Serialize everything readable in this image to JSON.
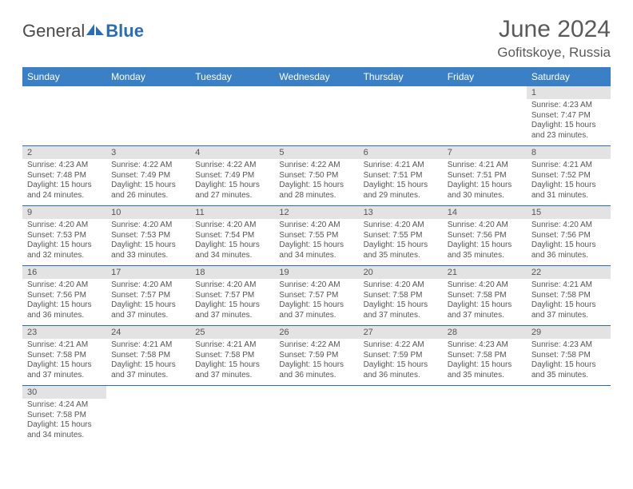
{
  "brand": {
    "part1": "General",
    "part2": "Blue"
  },
  "title": "June 2024",
  "location": "Gofitskoye, Russia",
  "colors": {
    "header_bg": "#3b7fc4",
    "header_text": "#ffffff",
    "daynum_bg": "#e3e3e3",
    "border": "#2a6db0",
    "text": "#555555"
  },
  "dayNames": [
    "Sunday",
    "Monday",
    "Tuesday",
    "Wednesday",
    "Thursday",
    "Friday",
    "Saturday"
  ],
  "weeks": [
    [
      null,
      null,
      null,
      null,
      null,
      null,
      {
        "n": "1",
        "sunrise": "Sunrise: 4:23 AM",
        "sunset": "Sunset: 7:47 PM",
        "daylight": "Daylight: 15 hours and 23 minutes."
      }
    ],
    [
      {
        "n": "2",
        "sunrise": "Sunrise: 4:23 AM",
        "sunset": "Sunset: 7:48 PM",
        "daylight": "Daylight: 15 hours and 24 minutes."
      },
      {
        "n": "3",
        "sunrise": "Sunrise: 4:22 AM",
        "sunset": "Sunset: 7:49 PM",
        "daylight": "Daylight: 15 hours and 26 minutes."
      },
      {
        "n": "4",
        "sunrise": "Sunrise: 4:22 AM",
        "sunset": "Sunset: 7:49 PM",
        "daylight": "Daylight: 15 hours and 27 minutes."
      },
      {
        "n": "5",
        "sunrise": "Sunrise: 4:22 AM",
        "sunset": "Sunset: 7:50 PM",
        "daylight": "Daylight: 15 hours and 28 minutes."
      },
      {
        "n": "6",
        "sunrise": "Sunrise: 4:21 AM",
        "sunset": "Sunset: 7:51 PM",
        "daylight": "Daylight: 15 hours and 29 minutes."
      },
      {
        "n": "7",
        "sunrise": "Sunrise: 4:21 AM",
        "sunset": "Sunset: 7:51 PM",
        "daylight": "Daylight: 15 hours and 30 minutes."
      },
      {
        "n": "8",
        "sunrise": "Sunrise: 4:21 AM",
        "sunset": "Sunset: 7:52 PM",
        "daylight": "Daylight: 15 hours and 31 minutes."
      }
    ],
    [
      {
        "n": "9",
        "sunrise": "Sunrise: 4:20 AM",
        "sunset": "Sunset: 7:53 PM",
        "daylight": "Daylight: 15 hours and 32 minutes."
      },
      {
        "n": "10",
        "sunrise": "Sunrise: 4:20 AM",
        "sunset": "Sunset: 7:53 PM",
        "daylight": "Daylight: 15 hours and 33 minutes."
      },
      {
        "n": "11",
        "sunrise": "Sunrise: 4:20 AM",
        "sunset": "Sunset: 7:54 PM",
        "daylight": "Daylight: 15 hours and 34 minutes."
      },
      {
        "n": "12",
        "sunrise": "Sunrise: 4:20 AM",
        "sunset": "Sunset: 7:55 PM",
        "daylight": "Daylight: 15 hours and 34 minutes."
      },
      {
        "n": "13",
        "sunrise": "Sunrise: 4:20 AM",
        "sunset": "Sunset: 7:55 PM",
        "daylight": "Daylight: 15 hours and 35 minutes."
      },
      {
        "n": "14",
        "sunrise": "Sunrise: 4:20 AM",
        "sunset": "Sunset: 7:56 PM",
        "daylight": "Daylight: 15 hours and 35 minutes."
      },
      {
        "n": "15",
        "sunrise": "Sunrise: 4:20 AM",
        "sunset": "Sunset: 7:56 PM",
        "daylight": "Daylight: 15 hours and 36 minutes."
      }
    ],
    [
      {
        "n": "16",
        "sunrise": "Sunrise: 4:20 AM",
        "sunset": "Sunset: 7:56 PM",
        "daylight": "Daylight: 15 hours and 36 minutes."
      },
      {
        "n": "17",
        "sunrise": "Sunrise: 4:20 AM",
        "sunset": "Sunset: 7:57 PM",
        "daylight": "Daylight: 15 hours and 37 minutes."
      },
      {
        "n": "18",
        "sunrise": "Sunrise: 4:20 AM",
        "sunset": "Sunset: 7:57 PM",
        "daylight": "Daylight: 15 hours and 37 minutes."
      },
      {
        "n": "19",
        "sunrise": "Sunrise: 4:20 AM",
        "sunset": "Sunset: 7:57 PM",
        "daylight": "Daylight: 15 hours and 37 minutes."
      },
      {
        "n": "20",
        "sunrise": "Sunrise: 4:20 AM",
        "sunset": "Sunset: 7:58 PM",
        "daylight": "Daylight: 15 hours and 37 minutes."
      },
      {
        "n": "21",
        "sunrise": "Sunrise: 4:20 AM",
        "sunset": "Sunset: 7:58 PM",
        "daylight": "Daylight: 15 hours and 37 minutes."
      },
      {
        "n": "22",
        "sunrise": "Sunrise: 4:21 AM",
        "sunset": "Sunset: 7:58 PM",
        "daylight": "Daylight: 15 hours and 37 minutes."
      }
    ],
    [
      {
        "n": "23",
        "sunrise": "Sunrise: 4:21 AM",
        "sunset": "Sunset: 7:58 PM",
        "daylight": "Daylight: 15 hours and 37 minutes."
      },
      {
        "n": "24",
        "sunrise": "Sunrise: 4:21 AM",
        "sunset": "Sunset: 7:58 PM",
        "daylight": "Daylight: 15 hours and 37 minutes."
      },
      {
        "n": "25",
        "sunrise": "Sunrise: 4:21 AM",
        "sunset": "Sunset: 7:58 PM",
        "daylight": "Daylight: 15 hours and 37 minutes."
      },
      {
        "n": "26",
        "sunrise": "Sunrise: 4:22 AM",
        "sunset": "Sunset: 7:59 PM",
        "daylight": "Daylight: 15 hours and 36 minutes."
      },
      {
        "n": "27",
        "sunrise": "Sunrise: 4:22 AM",
        "sunset": "Sunset: 7:59 PM",
        "daylight": "Daylight: 15 hours and 36 minutes."
      },
      {
        "n": "28",
        "sunrise": "Sunrise: 4:23 AM",
        "sunset": "Sunset: 7:58 PM",
        "daylight": "Daylight: 15 hours and 35 minutes."
      },
      {
        "n": "29",
        "sunrise": "Sunrise: 4:23 AM",
        "sunset": "Sunset: 7:58 PM",
        "daylight": "Daylight: 15 hours and 35 minutes."
      }
    ],
    [
      {
        "n": "30",
        "sunrise": "Sunrise: 4:24 AM",
        "sunset": "Sunset: 7:58 PM",
        "daylight": "Daylight: 15 hours and 34 minutes."
      },
      null,
      null,
      null,
      null,
      null,
      null
    ]
  ]
}
